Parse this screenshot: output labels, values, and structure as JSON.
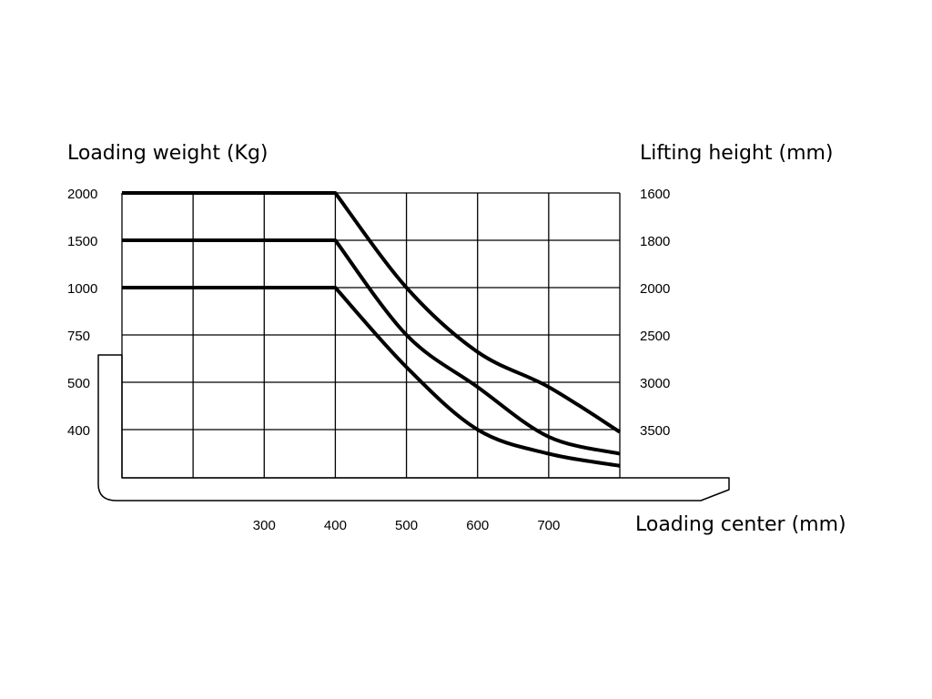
{
  "chart_data": {
    "type": "line",
    "title": "",
    "left_axis_label": "Loading weight (Kg)",
    "right_axis_label": "Lifting height (mm)",
    "xlabel": "Loading center (mm)",
    "left_tick_labels": [
      "2000",
      "1500",
      "1000",
      "750",
      "500",
      "400"
    ],
    "right_tick_labels": [
      "1600",
      "1800",
      "2000",
      "2500",
      "3000",
      "3500"
    ],
    "x_tick_labels": [
      "300",
      "400",
      "500",
      "600",
      "700"
    ],
    "x_ticks": [
      300,
      400,
      500,
      600,
      700
    ],
    "xlim": [
      100,
      800
    ],
    "grid": true,
    "colors": {
      "line": "#000000",
      "grid": "#000000",
      "background": "#ffffff"
    },
    "series": [
      {
        "rated_load": 2000,
        "points": [
          [
            100,
            2000
          ],
          [
            400,
            2000
          ],
          [
            500,
            1000
          ],
          [
            600,
            660
          ],
          [
            700,
            490
          ],
          [
            800,
            390
          ]
        ]
      },
      {
        "rated_load": 1500,
        "points": [
          [
            100,
            1500
          ],
          [
            400,
            1500
          ],
          [
            500,
            750
          ],
          [
            600,
            490
          ],
          [
            700,
            370
          ],
          [
            800,
            300
          ]
        ]
      },
      {
        "rated_load": 1000,
        "points": [
          [
            100,
            1000
          ],
          [
            400,
            1000
          ],
          [
            500,
            580
          ],
          [
            600,
            400
          ],
          [
            700,
            300
          ],
          [
            800,
            250
          ]
        ]
      }
    ]
  }
}
